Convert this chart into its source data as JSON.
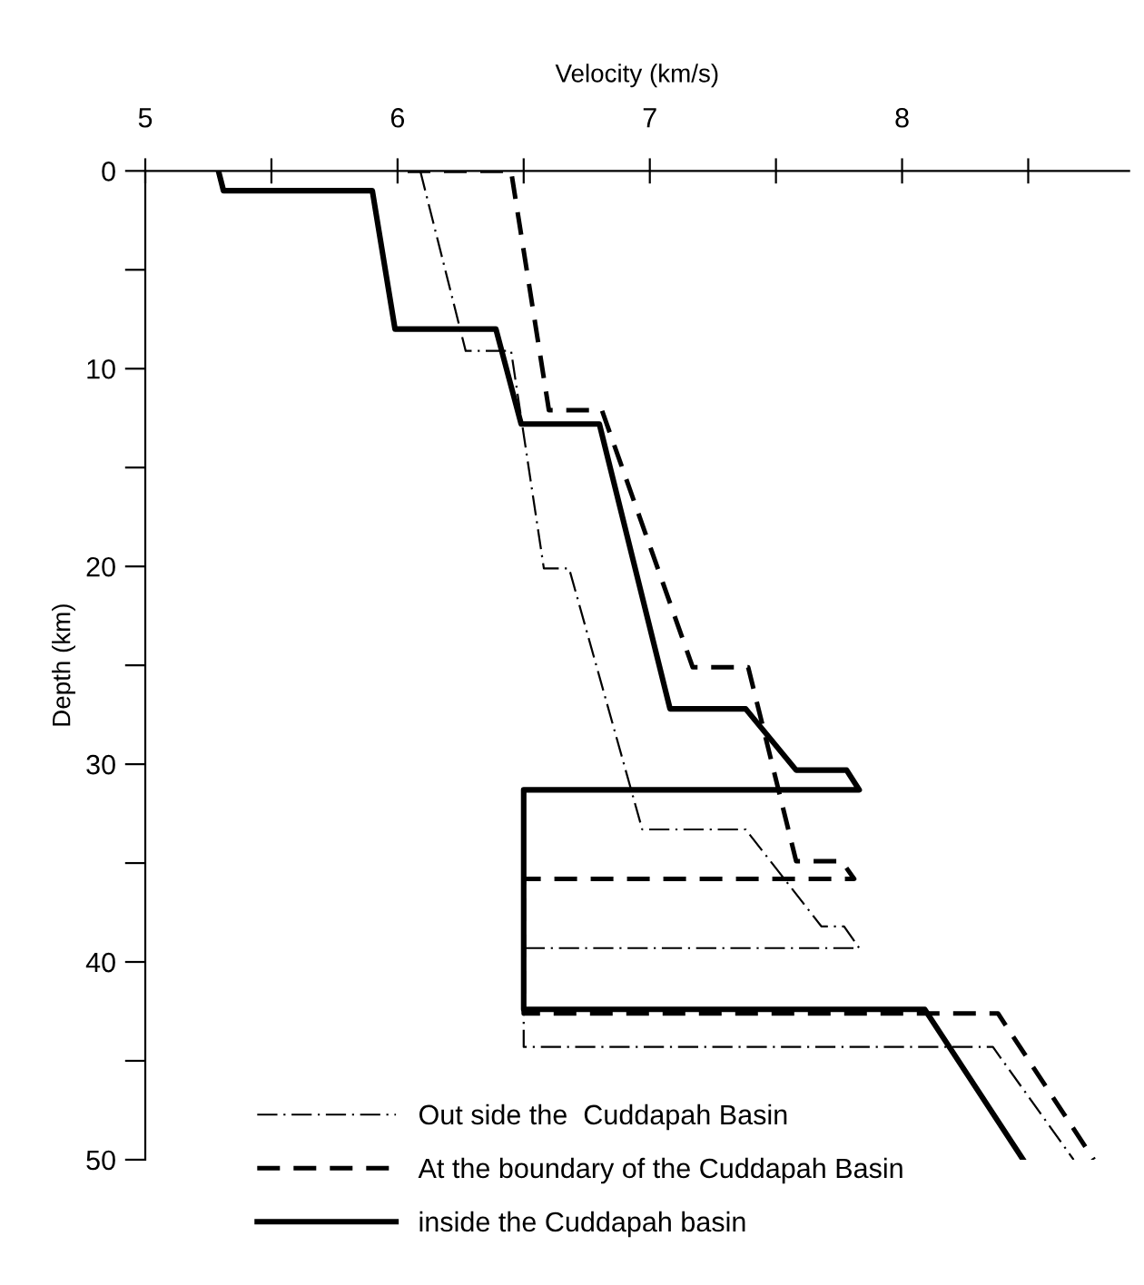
{
  "chart_data": {
    "type": "line",
    "xlabel": "Velocity (km/s)",
    "ylabel": "Depth (km)",
    "xlim": [
      5,
      8.9
    ],
    "xticks": [
      5,
      {
        "value": 5.5,
        "label": null
      },
      6,
      {
        "value": 6.5,
        "label": null
      },
      7,
      {
        "value": 7.5,
        "label": null
      },
      8,
      {
        "value": 8.5,
        "label": null
      }
    ],
    "ylim": [
      50,
      0
    ],
    "yticks": [
      0,
      {
        "value": 5,
        "label": null
      },
      10,
      {
        "value": 15,
        "label": null
      },
      20,
      {
        "value": 25,
        "label": null
      },
      30,
      {
        "value": 35,
        "label": null
      },
      40,
      {
        "value": 45,
        "label": null
      },
      50
    ],
    "grid": false,
    "legend": "bottom left",
    "marker": "none",
    "series": [
      {
        "name": "Out side the  Cuddapah Basin",
        "color": "#000000",
        "line_style": "dashdot",
        "x": [
          6.09,
          6.27,
          6.45,
          6.58,
          6.68,
          6.97,
          7.38,
          7.68,
          7.77,
          7.83,
          6.5,
          6.5,
          8.36,
          8.68
        ],
        "values": [
          0,
          9.1,
          9.1,
          20.1,
          20.1,
          33.3,
          33.3,
          38.2,
          38.2,
          39.3,
          39.3,
          44.3,
          44.3,
          50
        ]
      },
      {
        "name": "At the boundary of the Cuddapah Basin",
        "color": "#000000",
        "line_style": "dashed",
        "x": [
          6.04,
          6.45,
          6.6,
          6.81,
          7.17,
          7.39,
          7.58,
          7.76,
          7.81,
          6.5,
          6.5,
          8.38,
          8.76
        ],
        "values": [
          0,
          0,
          12.1,
          12.1,
          25.1,
          25.1,
          34.9,
          34.9,
          35.8,
          35.8,
          42.6,
          42.6,
          50
        ]
      },
      {
        "name": "inside the Cuddapah basin",
        "color": "#000000",
        "line_style": "solid",
        "x": [
          5.29,
          5.31,
          5.9,
          5.99,
          6.39,
          6.49,
          6.8,
          7.08,
          7.38,
          7.58,
          7.78,
          7.83,
          6.5,
          6.5,
          8.09,
          8.48
        ],
        "values": [
          0,
          1,
          1,
          8,
          8,
          12.8,
          12.8,
          27.2,
          27.2,
          30.3,
          30.3,
          31.3,
          31.3,
          42.4,
          42.4,
          50
        ]
      }
    ]
  }
}
